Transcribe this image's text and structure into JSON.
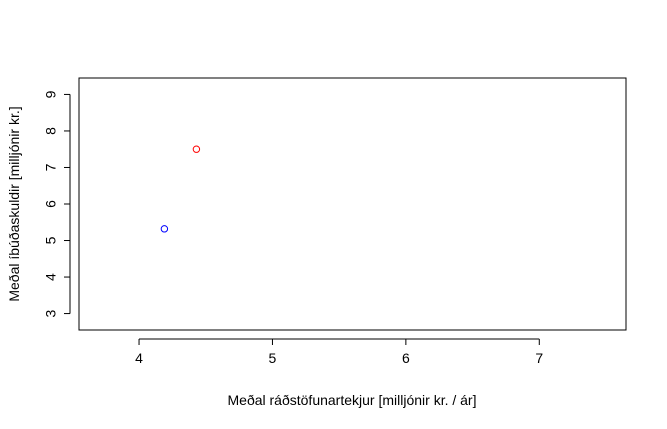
{
  "chart_data": {
    "type": "scatter",
    "title": "",
    "xlabel": "Meðal ráðstöfunartekjur [milljónir kr. / ár]",
    "ylabel": "Meðal íbúðaskuldir [milljónir kr.]",
    "xlim": [
      3.55,
      7.65
    ],
    "ylim": [
      2.55,
      9.45
    ],
    "x_ticks": [
      4,
      5,
      6,
      7
    ],
    "y_ticks": [
      3,
      4,
      5,
      6,
      7,
      8,
      9
    ],
    "x_tick_labels": [
      "4",
      "5",
      "6",
      "7"
    ],
    "y_tick_labels": [
      "3",
      "4",
      "5",
      "6",
      "7",
      "8",
      "9"
    ],
    "grid": false,
    "points": [
      {
        "x": 4.19,
        "y": 5.32,
        "color": "#0000ff"
      },
      {
        "x": 4.43,
        "y": 7.5,
        "color": "#ff0000"
      }
    ]
  }
}
